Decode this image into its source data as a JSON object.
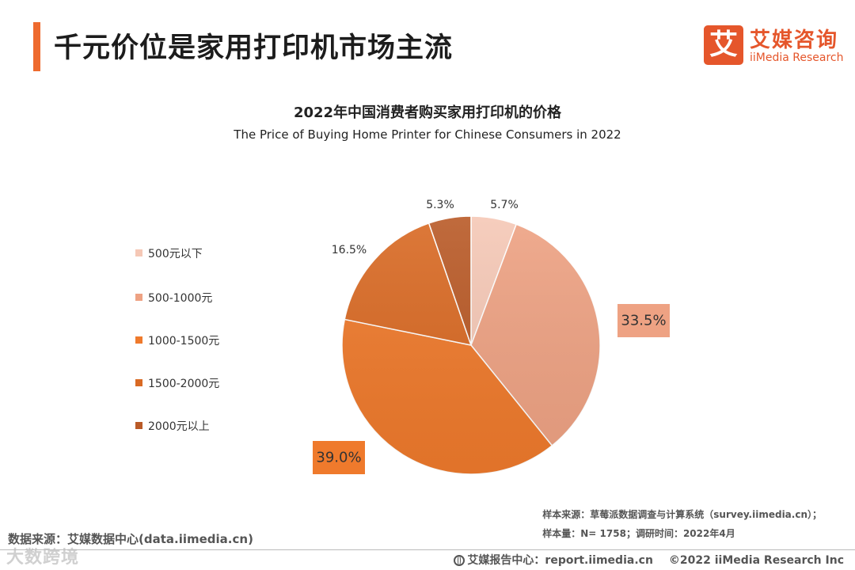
{
  "header": {
    "title": "千元价位是家用打印机市场主流",
    "logo_char": "艾",
    "logo_cn": "艾媒咨询",
    "logo_en": "iiMedia Research"
  },
  "chart_data": {
    "type": "pie",
    "title": "2022年中国消费者购买家用打印机的价格",
    "subtitle": "The Price of Buying Home Printer for Chinese Consumers in 2022",
    "categories": [
      "500元以下",
      "500-1000元",
      "1000-1500元",
      "1500-2000元",
      "2000元以上"
    ],
    "values": [
      5.7,
      33.5,
      39.0,
      16.5,
      5.3
    ],
    "labels": [
      "5.7%",
      "33.5%",
      "39.0%",
      "16.5%",
      "5.3%"
    ],
    "colors": [
      "#f5c8b6",
      "#eea283",
      "#ef7a2c",
      "#d96a24",
      "#b95a27"
    ],
    "start_angle_deg": 0,
    "direction": "clockwise",
    "legend_position": "left"
  },
  "notes": {
    "line1": "样本来源：草莓派数据调查与计算系统（survey.iimedia.cn）；",
    "line2": "样本量：N= 1758；调研时间：2022年4月"
  },
  "source": "数据来源：艾媒数据中心(data.iimedia.cn)",
  "watermark": "大数跨境",
  "footer": {
    "report_center": "艾媒报告中心：report.iimedia.cn",
    "copyright": "©2022  iiMedia Research  Inc"
  }
}
